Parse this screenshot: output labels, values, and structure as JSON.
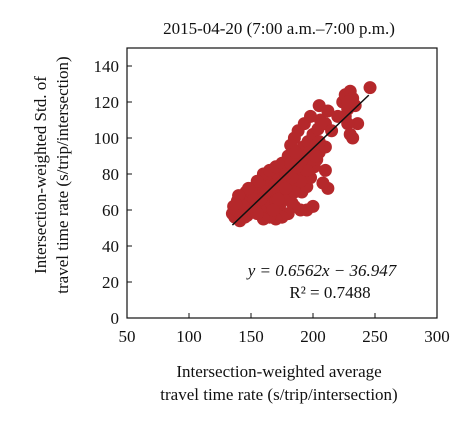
{
  "chart_data": {
    "type": "scatter",
    "title": "2015-04-20 (7:00 a.m.–7:00 p.m.)",
    "xlabel_lines": [
      "Intersection-weighted average",
      "travel time rate (s/trip/intersection)"
    ],
    "ylabel_lines": [
      "Intersection-weighted Std. of",
      "travel time rate (s/trip/intersection)"
    ],
    "xlim": [
      50,
      300
    ],
    "ylim": [
      0,
      150
    ],
    "x_ticks": [
      50,
      100,
      150,
      200,
      250,
      300
    ],
    "y_ticks": [
      0,
      20,
      40,
      60,
      80,
      100,
      120,
      140
    ],
    "grid": false,
    "marker_color": "#b5282b",
    "line_color": "#111111",
    "trendline": {
      "slope": 0.6562,
      "intercept": -36.947,
      "x_range": [
        135,
        245
      ]
    },
    "annotation_equation": "y = 0.6562x − 36.947",
    "annotation_r2_label": "R² = 0.7488",
    "points": [
      [
        135,
        58
      ],
      [
        136,
        62
      ],
      [
        137,
        56
      ],
      [
        138,
        60
      ],
      [
        139,
        65
      ],
      [
        140,
        59
      ],
      [
        141,
        54
      ],
      [
        142,
        63
      ],
      [
        143,
        67
      ],
      [
        144,
        58
      ],
      [
        145,
        61
      ],
      [
        146,
        70
      ],
      [
        147,
        57
      ],
      [
        148,
        64
      ],
      [
        149,
        60
      ],
      [
        150,
        66
      ],
      [
        151,
        72
      ],
      [
        152,
        59
      ],
      [
        153,
        63
      ],
      [
        154,
        68
      ],
      [
        155,
        61
      ],
      [
        156,
        74
      ],
      [
        157,
        66
      ],
      [
        158,
        58
      ],
      [
        159,
        62
      ],
      [
        160,
        70
      ],
      [
        161,
        76
      ],
      [
        162,
        64
      ],
      [
        163,
        60
      ],
      [
        164,
        67
      ],
      [
        165,
        72
      ],
      [
        166,
        78
      ],
      [
        167,
        63
      ],
      [
        168,
        69
      ],
      [
        169,
        74
      ],
      [
        170,
        65
      ],
      [
        171,
        80
      ],
      [
        172,
        70
      ],
      [
        173,
        62
      ],
      [
        174,
        75
      ],
      [
        175,
        68
      ],
      [
        176,
        82
      ],
      [
        177,
        72
      ],
      [
        178,
        66
      ],
      [
        179,
        77
      ],
      [
        180,
        70
      ],
      [
        181,
        85
      ],
      [
        182,
        74
      ],
      [
        183,
        64
      ],
      [
        184,
        79
      ],
      [
        185,
        88
      ],
      [
        186,
        72
      ],
      [
        187,
        81
      ],
      [
        188,
        92
      ],
      [
        189,
        76
      ],
      [
        190,
        84
      ],
      [
        191,
        70
      ],
      [
        192,
        95
      ],
      [
        193,
        80
      ],
      [
        194,
        88
      ],
      [
        195,
        73
      ],
      [
        196,
        98
      ],
      [
        197,
        86
      ],
      [
        198,
        78
      ],
      [
        199,
        92
      ],
      [
        200,
        102
      ],
      [
        201,
        84
      ],
      [
        202,
        96
      ],
      [
        203,
        88
      ],
      [
        204,
        105
      ],
      [
        205,
        92
      ],
      [
        206,
        110
      ],
      [
        185,
        100
      ],
      [
        182,
        96
      ],
      [
        188,
        104
      ],
      [
        193,
        108
      ],
      [
        198,
        112
      ],
      [
        205,
        118
      ],
      [
        210,
        108
      ],
      [
        212,
        115
      ],
      [
        215,
        104
      ],
      [
        220,
        112
      ],
      [
        224,
        120
      ],
      [
        226,
        124
      ],
      [
        228,
        116
      ],
      [
        230,
        126
      ],
      [
        232,
        122
      ],
      [
        234,
        118
      ],
      [
        236,
        108
      ],
      [
        228,
        108
      ],
      [
        230,
        102
      ],
      [
        232,
        100
      ],
      [
        226,
        112
      ],
      [
        246,
        128
      ],
      [
        228,
        120
      ],
      [
        210,
        95
      ],
      [
        205,
        98
      ],
      [
        200,
        88
      ],
      [
        210,
        82
      ],
      [
        212,
        72
      ],
      [
        208,
        75
      ],
      [
        195,
        60
      ],
      [
        200,
        62
      ],
      [
        190,
        60
      ],
      [
        185,
        62
      ],
      [
        180,
        58
      ],
      [
        175,
        56
      ],
      [
        170,
        55
      ],
      [
        165,
        56
      ],
      [
        160,
        55
      ],
      [
        155,
        58
      ],
      [
        150,
        62
      ],
      [
        145,
        56
      ],
      [
        170,
        70
      ],
      [
        175,
        74
      ],
      [
        180,
        66
      ],
      [
        185,
        70
      ],
      [
        190,
        76
      ],
      [
        195,
        82
      ],
      [
        160,
        80
      ],
      [
        155,
        76
      ],
      [
        165,
        82
      ],
      [
        170,
        84
      ],
      [
        175,
        86
      ],
      [
        180,
        90
      ],
      [
        158,
        66
      ],
      [
        162,
        70
      ],
      [
        168,
        60
      ],
      [
        172,
        66
      ],
      [
        178,
        72
      ],
      [
        183,
        78
      ],
      [
        187,
        84
      ],
      [
        191,
        88
      ],
      [
        197,
        92
      ],
      [
        202,
        90
      ],
      [
        178,
        80
      ],
      [
        182,
        86
      ],
      [
        186,
        92
      ],
      [
        150,
        70
      ],
      [
        152,
        66
      ],
      [
        148,
        72
      ],
      [
        144,
        62
      ],
      [
        140,
        68
      ],
      [
        138,
        63
      ],
      [
        142,
        57
      ]
    ]
  }
}
